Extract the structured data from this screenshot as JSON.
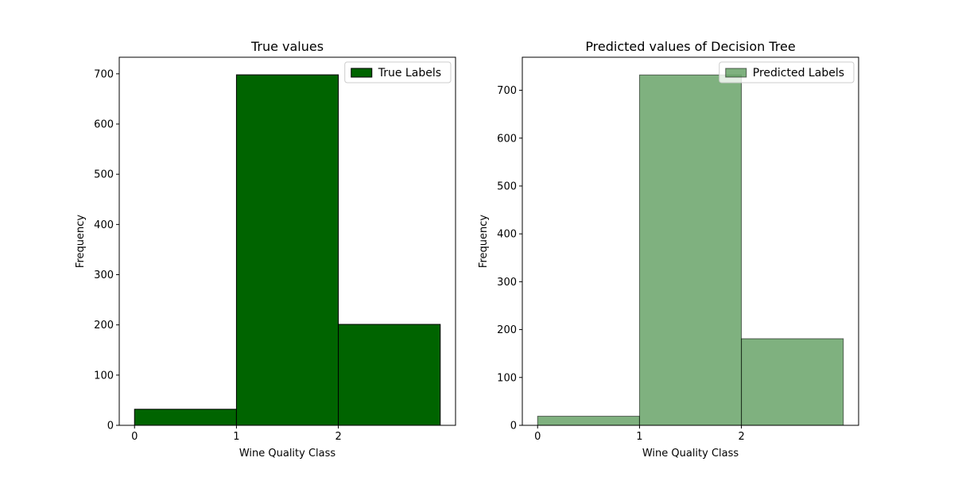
{
  "chart_data": [
    {
      "type": "bar",
      "title": "True values",
      "xlabel": "Wine Quality Class",
      "ylabel": "Frequency",
      "bins": [
        [
          0,
          1
        ],
        [
          1,
          2
        ],
        [
          2,
          3
        ]
      ],
      "values": [
        32,
        698,
        201
      ],
      "xlim": [
        -0.15,
        3.15
      ],
      "ylim": [
        0,
        733
      ],
      "xticks": [
        0,
        1,
        2
      ],
      "yticks": [
        0,
        100,
        200,
        300,
        400,
        500,
        600,
        700
      ],
      "legend": "True Labels",
      "legend_position": "top-right",
      "color": "#006400",
      "opacity": 1.0,
      "grid": false
    },
    {
      "type": "bar",
      "title": "Predicted values of Decision Tree",
      "xlabel": "Wine Quality Class",
      "ylabel": "Frequency",
      "bins": [
        [
          0,
          1
        ],
        [
          1,
          2
        ],
        [
          2,
          3
        ]
      ],
      "values": [
        19,
        732,
        181
      ],
      "xlim": [
        -0.15,
        3.15
      ],
      "ylim": [
        0,
        769
      ],
      "xticks": [
        0,
        1,
        2
      ],
      "yticks": [
        0,
        100,
        200,
        300,
        400,
        500,
        600,
        700
      ],
      "legend": "Predicted Labels",
      "legend_position": "top-right",
      "color": "#006400",
      "opacity": 0.5,
      "grid": false
    }
  ]
}
